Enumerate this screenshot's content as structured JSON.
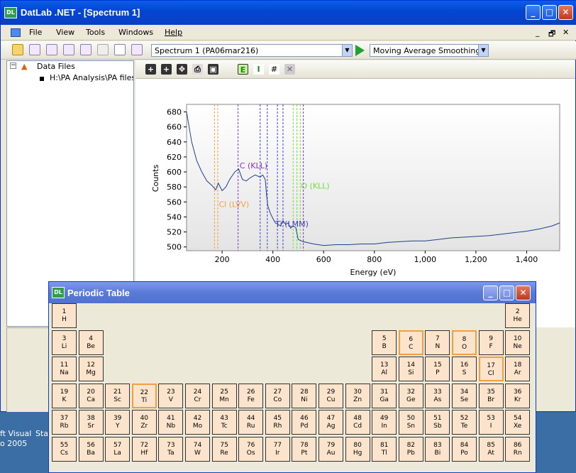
{
  "window": {
    "title": "DatLab .NET - [Spectrum 1]",
    "app_icon_label": "DL",
    "buttons": [
      "_",
      "□",
      "✕"
    ]
  },
  "menu": {
    "items": [
      "File",
      "View",
      "Tools",
      "Windows",
      "Help"
    ],
    "mdi_buttons": [
      "_",
      "🗗",
      "✕"
    ]
  },
  "toolbar": {
    "spectrum_select": "Spectrum 1 (PA06mar216)",
    "smoothing_select": "Moving Average Smoothing"
  },
  "tree": {
    "root": "Data Files",
    "child": "H:\\PA Analysis\\PA files"
  },
  "chart_data": {
    "type": "line",
    "xlabel": "Energy (eV)",
    "ylabel": "Counts",
    "xlim": [
      60,
      1530
    ],
    "ylim": [
      495,
      690
    ],
    "xticks": [
      200,
      400,
      600,
      800,
      1000,
      1200,
      1400
    ],
    "xtick_labels": [
      "200",
      "400",
      "600",
      "800",
      "1,000",
      "1,200",
      "1,400"
    ],
    "yticks": [
      500,
      520,
      540,
      560,
      580,
      600,
      620,
      640,
      660,
      680
    ],
    "series": [
      {
        "x": [
          60,
          80,
          100,
          120,
          140,
          160,
          175,
          185,
          200,
          215,
          230,
          250,
          265,
          280,
          295,
          310,
          330,
          350,
          360,
          370,
          375,
          380,
          390,
          400,
          410,
          420,
          430,
          440,
          450,
          460,
          470,
          480,
          490,
          500,
          520,
          560,
          600,
          650,
          700,
          750,
          800,
          850,
          900,
          950,
          1000,
          1050,
          1100,
          1150,
          1200,
          1250,
          1300,
          1350,
          1400,
          1450,
          1500,
          1530
        ],
        "values": [
          680,
          640,
          615,
          600,
          588,
          582,
          576,
          585,
          575,
          580,
          590,
          600,
          604,
          590,
          588,
          592,
          596,
          593,
          596,
          590,
          570,
          555,
          545,
          538,
          532,
          530,
          528,
          535,
          530,
          532,
          525,
          528,
          526,
          510,
          507,
          504,
          502,
          503,
          503,
          504,
          504,
          506,
          507,
          508,
          508,
          510,
          512,
          513,
          514,
          515,
          517,
          519,
          521,
          524,
          528,
          532
        ]
      }
    ],
    "annotations": [
      {
        "label": "C (KLL)",
        "x": 263
      },
      {
        "label": "Cl (LVV)",
        "x": 180
      },
      {
        "label": "O (KLL)",
        "x": 503
      },
      {
        "label": "Ti (LMM)",
        "x": 418
      }
    ],
    "colors": {
      "line": "#1f3f8f",
      "c": "#8e2fd0",
      "cl": "#f0a040",
      "o": "#6fdc3c",
      "ti": "#4040c0"
    }
  },
  "periodic_table": {
    "title": "Periodic Table",
    "icon_label": "DL",
    "elements": [
      {
        "n": "1",
        "s": "H",
        "r": 0,
        "c": 0
      },
      {
        "n": "2",
        "s": "He",
        "r": 0,
        "c": 17
      },
      {
        "n": "3",
        "s": "Li",
        "r": 1,
        "c": 0
      },
      {
        "n": "4",
        "s": "Be",
        "r": 1,
        "c": 1
      },
      {
        "n": "5",
        "s": "B",
        "r": 1,
        "c": 12
      },
      {
        "n": "6",
        "s": "C",
        "r": 1,
        "c": 13,
        "hl": true
      },
      {
        "n": "7",
        "s": "N",
        "r": 1,
        "c": 14
      },
      {
        "n": "8",
        "s": "O",
        "r": 1,
        "c": 15,
        "hl": true
      },
      {
        "n": "9",
        "s": "F",
        "r": 1,
        "c": 16
      },
      {
        "n": "10",
        "s": "Ne",
        "r": 1,
        "c": 17
      },
      {
        "n": "11",
        "s": "Na",
        "r": 2,
        "c": 0
      },
      {
        "n": "12",
        "s": "Mg",
        "r": 2,
        "c": 1
      },
      {
        "n": "13",
        "s": "Al",
        "r": 2,
        "c": 12
      },
      {
        "n": "14",
        "s": "Si",
        "r": 2,
        "c": 13
      },
      {
        "n": "15",
        "s": "P",
        "r": 2,
        "c": 14
      },
      {
        "n": "16",
        "s": "S",
        "r": 2,
        "c": 15
      },
      {
        "n": "17",
        "s": "Cl",
        "r": 2,
        "c": 16,
        "hl": true
      },
      {
        "n": "18",
        "s": "Ar",
        "r": 2,
        "c": 17
      },
      {
        "n": "19",
        "s": "K",
        "r": 3,
        "c": 0
      },
      {
        "n": "20",
        "s": "Ca",
        "r": 3,
        "c": 1
      },
      {
        "n": "21",
        "s": "Sc",
        "r": 3,
        "c": 2
      },
      {
        "n": "22",
        "s": "Ti",
        "r": 3,
        "c": 3,
        "hl": true
      },
      {
        "n": "23",
        "s": "V",
        "r": 3,
        "c": 4
      },
      {
        "n": "24",
        "s": "Cr",
        "r": 3,
        "c": 5
      },
      {
        "n": "25",
        "s": "Mn",
        "r": 3,
        "c": 6
      },
      {
        "n": "26",
        "s": "Fe",
        "r": 3,
        "c": 7
      },
      {
        "n": "27",
        "s": "Co",
        "r": 3,
        "c": 8
      },
      {
        "n": "28",
        "s": "Ni",
        "r": 3,
        "c": 9
      },
      {
        "n": "29",
        "s": "Cu",
        "r": 3,
        "c": 10
      },
      {
        "n": "30",
        "s": "Zn",
        "r": 3,
        "c": 11
      },
      {
        "n": "31",
        "s": "Ga",
        "r": 3,
        "c": 12
      },
      {
        "n": "32",
        "s": "Ge",
        "r": 3,
        "c": 13
      },
      {
        "n": "33",
        "s": "As",
        "r": 3,
        "c": 14
      },
      {
        "n": "34",
        "s": "Se",
        "r": 3,
        "c": 15
      },
      {
        "n": "35",
        "s": "Br",
        "r": 3,
        "c": 16
      },
      {
        "n": "36",
        "s": "Kr",
        "r": 3,
        "c": 17
      },
      {
        "n": "37",
        "s": "Rb",
        "r": 4,
        "c": 0
      },
      {
        "n": "38",
        "s": "Sr",
        "r": 4,
        "c": 1
      },
      {
        "n": "39",
        "s": "Y",
        "r": 4,
        "c": 2
      },
      {
        "n": "40",
        "s": "Zr",
        "r": 4,
        "c": 3
      },
      {
        "n": "41",
        "s": "Nb",
        "r": 4,
        "c": 4
      },
      {
        "n": "42",
        "s": "Mo",
        "r": 4,
        "c": 5
      },
      {
        "n": "43",
        "s": "Tc",
        "r": 4,
        "c": 6
      },
      {
        "n": "44",
        "s": "Ru",
        "r": 4,
        "c": 7
      },
      {
        "n": "45",
        "s": "Rh",
        "r": 4,
        "c": 8
      },
      {
        "n": "46",
        "s": "Pd",
        "r": 4,
        "c": 9
      },
      {
        "n": "47",
        "s": "Ag",
        "r": 4,
        "c": 10
      },
      {
        "n": "48",
        "s": "Cd",
        "r": 4,
        "c": 11
      },
      {
        "n": "49",
        "s": "In",
        "r": 4,
        "c": 12
      },
      {
        "n": "50",
        "s": "Sn",
        "r": 4,
        "c": 13
      },
      {
        "n": "51",
        "s": "Sb",
        "r": 4,
        "c": 14
      },
      {
        "n": "52",
        "s": "Te",
        "r": 4,
        "c": 15
      },
      {
        "n": "53",
        "s": "I",
        "r": 4,
        "c": 16
      },
      {
        "n": "54",
        "s": "Xe",
        "r": 4,
        "c": 17
      },
      {
        "n": "55",
        "s": "Cs",
        "r": 5,
        "c": 0
      },
      {
        "n": "56",
        "s": "Ba",
        "r": 5,
        "c": 1
      },
      {
        "n": "57",
        "s": "La",
        "r": 5,
        "c": 2
      },
      {
        "n": "72",
        "s": "Hf",
        "r": 5,
        "c": 3
      },
      {
        "n": "73",
        "s": "Ta",
        "r": 5,
        "c": 4
      },
      {
        "n": "74",
        "s": "W",
        "r": 5,
        "c": 5
      },
      {
        "n": "75",
        "s": "Re",
        "r": 5,
        "c": 6
      },
      {
        "n": "76",
        "s": "Os",
        "r": 5,
        "c": 7
      },
      {
        "n": "77",
        "s": "Ir",
        "r": 5,
        "c": 8
      },
      {
        "n": "78",
        "s": "Pt",
        "r": 5,
        "c": 9
      },
      {
        "n": "79",
        "s": "Au",
        "r": 5,
        "c": 10
      },
      {
        "n": "80",
        "s": "Hg",
        "r": 5,
        "c": 11
      },
      {
        "n": "81",
        "s": "Tl",
        "r": 5,
        "c": 12
      },
      {
        "n": "82",
        "s": "Pb",
        "r": 5,
        "c": 13
      },
      {
        "n": "83",
        "s": "Bi",
        "r": 5,
        "c": 14
      },
      {
        "n": "84",
        "s": "Po",
        "r": 5,
        "c": 15
      },
      {
        "n": "85",
        "s": "At",
        "r": 5,
        "c": 16
      },
      {
        "n": "86",
        "s": "Rn",
        "r": 5,
        "c": 17
      }
    ]
  },
  "taskbar": {
    "text1": "ft Visual",
    "text2": "Star",
    "text3": "o 2005"
  }
}
